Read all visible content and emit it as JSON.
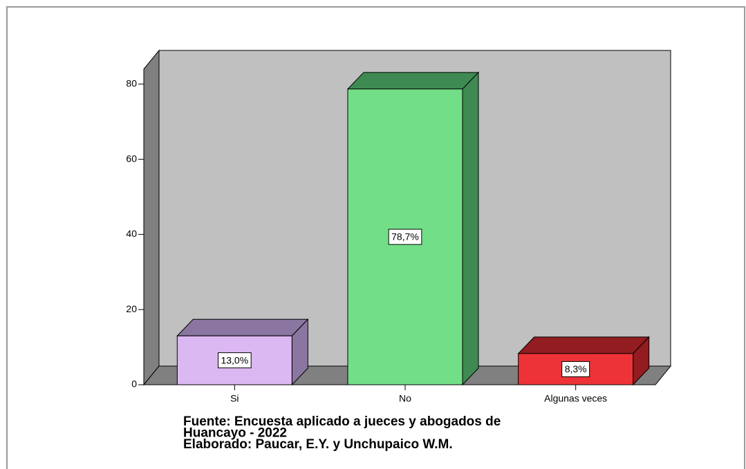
{
  "chart_data": {
    "type": "bar3d",
    "categories": [
      "Si",
      "No",
      "Algunas veces"
    ],
    "values": [
      13.0,
      78.7,
      8.3
    ],
    "value_labels": [
      "13,0%",
      "78,7%",
      "8,3%"
    ],
    "colors": [
      "#dcb8f2",
      "#72de88",
      "#ee3338"
    ],
    "shade_colors": [
      "#8a76a0",
      "#3e8a52",
      "#921c20"
    ],
    "ylim": [
      0,
      84
    ],
    "yticks": [
      0,
      20,
      40,
      60,
      80
    ],
    "annotations": [
      "Fuente: Encuesta aplicado a jueces y abogados de",
      "Huancayo - 2022",
      "Elaborado: Paucar, E.Y. y Unchupaico W.M."
    ]
  }
}
